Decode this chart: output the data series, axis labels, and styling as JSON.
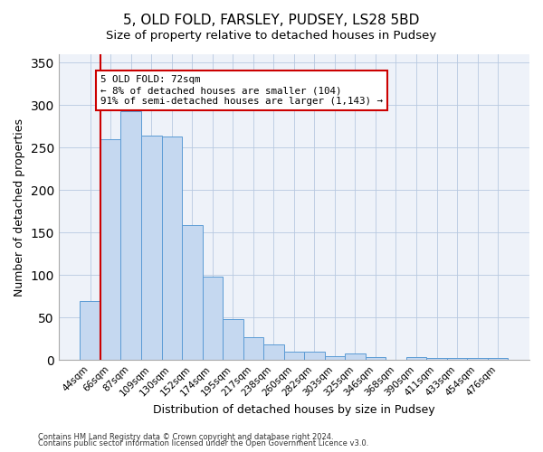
{
  "title1": "5, OLD FOLD, FARSLEY, PUDSEY, LS28 5BD",
  "title2": "Size of property relative to detached houses in Pudsey",
  "xlabel": "Distribution of detached houses by size in Pudsey",
  "ylabel": "Number of detached properties",
  "categories": [
    "44sqm",
    "66sqm",
    "87sqm",
    "109sqm",
    "130sqm",
    "152sqm",
    "174sqm",
    "195sqm",
    "217sqm",
    "238sqm",
    "260sqm",
    "282sqm",
    "303sqm",
    "325sqm",
    "346sqm",
    "368sqm",
    "390sqm",
    "411sqm",
    "433sqm",
    "454sqm",
    "476sqm"
  ],
  "values": [
    69,
    260,
    293,
    264,
    263,
    159,
    98,
    48,
    27,
    18,
    10,
    10,
    5,
    8,
    4,
    0,
    4,
    2,
    2,
    2,
    3
  ],
  "bar_color": "#c5d8f0",
  "bar_edge_color": "#5b9bd5",
  "vline_x": 1.0,
  "vline_color": "#cc0000",
  "annotation_text": "5 OLD FOLD: 72sqm\n← 8% of detached houses are smaller (104)\n91% of semi-detached houses are larger (1,143) →",
  "annotation_box_color": "#cc0000",
  "footer1": "Contains HM Land Registry data © Crown copyright and database right 2024.",
  "footer2": "Contains public sector information licensed under the Open Government Licence v3.0.",
  "ylim": [
    0,
    360
  ],
  "yticks": [
    0,
    50,
    100,
    150,
    200,
    250,
    300,
    350
  ],
  "bg_color": "#eef2f9",
  "title1_fontsize": 11,
  "title2_fontsize": 9.5,
  "xlabel_fontsize": 9,
  "ylabel_fontsize": 9,
  "tick_fontsize": 7.5,
  "footer_fontsize": 6.0
}
